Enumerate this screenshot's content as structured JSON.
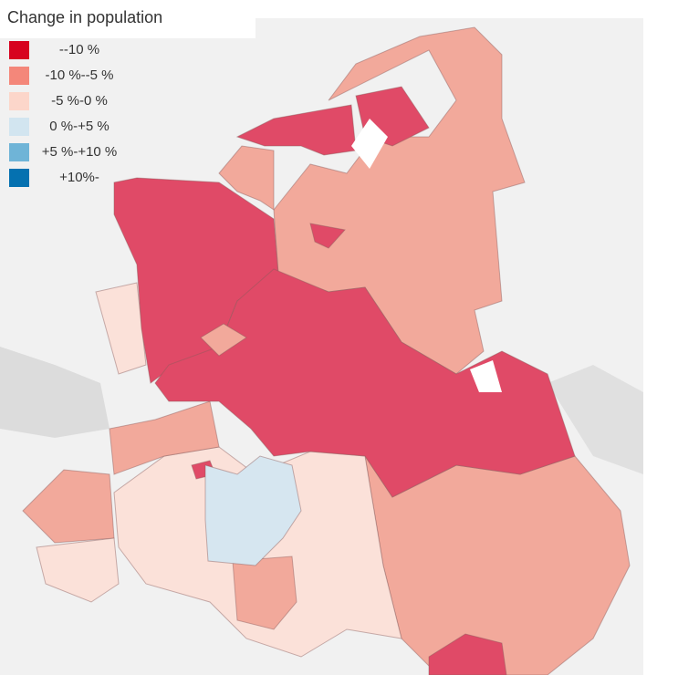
{
  "legend": {
    "title": "Change in population",
    "items": [
      {
        "label": "--10 %",
        "color": "#d7021f"
      },
      {
        "label": "-10 %--5 %",
        "color": "#f4877a"
      },
      {
        "label": "-5 %-0 %",
        "color": "#fcd6ca"
      },
      {
        "label": "0 %-+5 %",
        "color": "#d2e5f0"
      },
      {
        "label": "+5 %-+10 %",
        "color": "#6fb4d7"
      },
      {
        "label": "+10%-",
        "color": "#0571b0"
      }
    ]
  }
}
